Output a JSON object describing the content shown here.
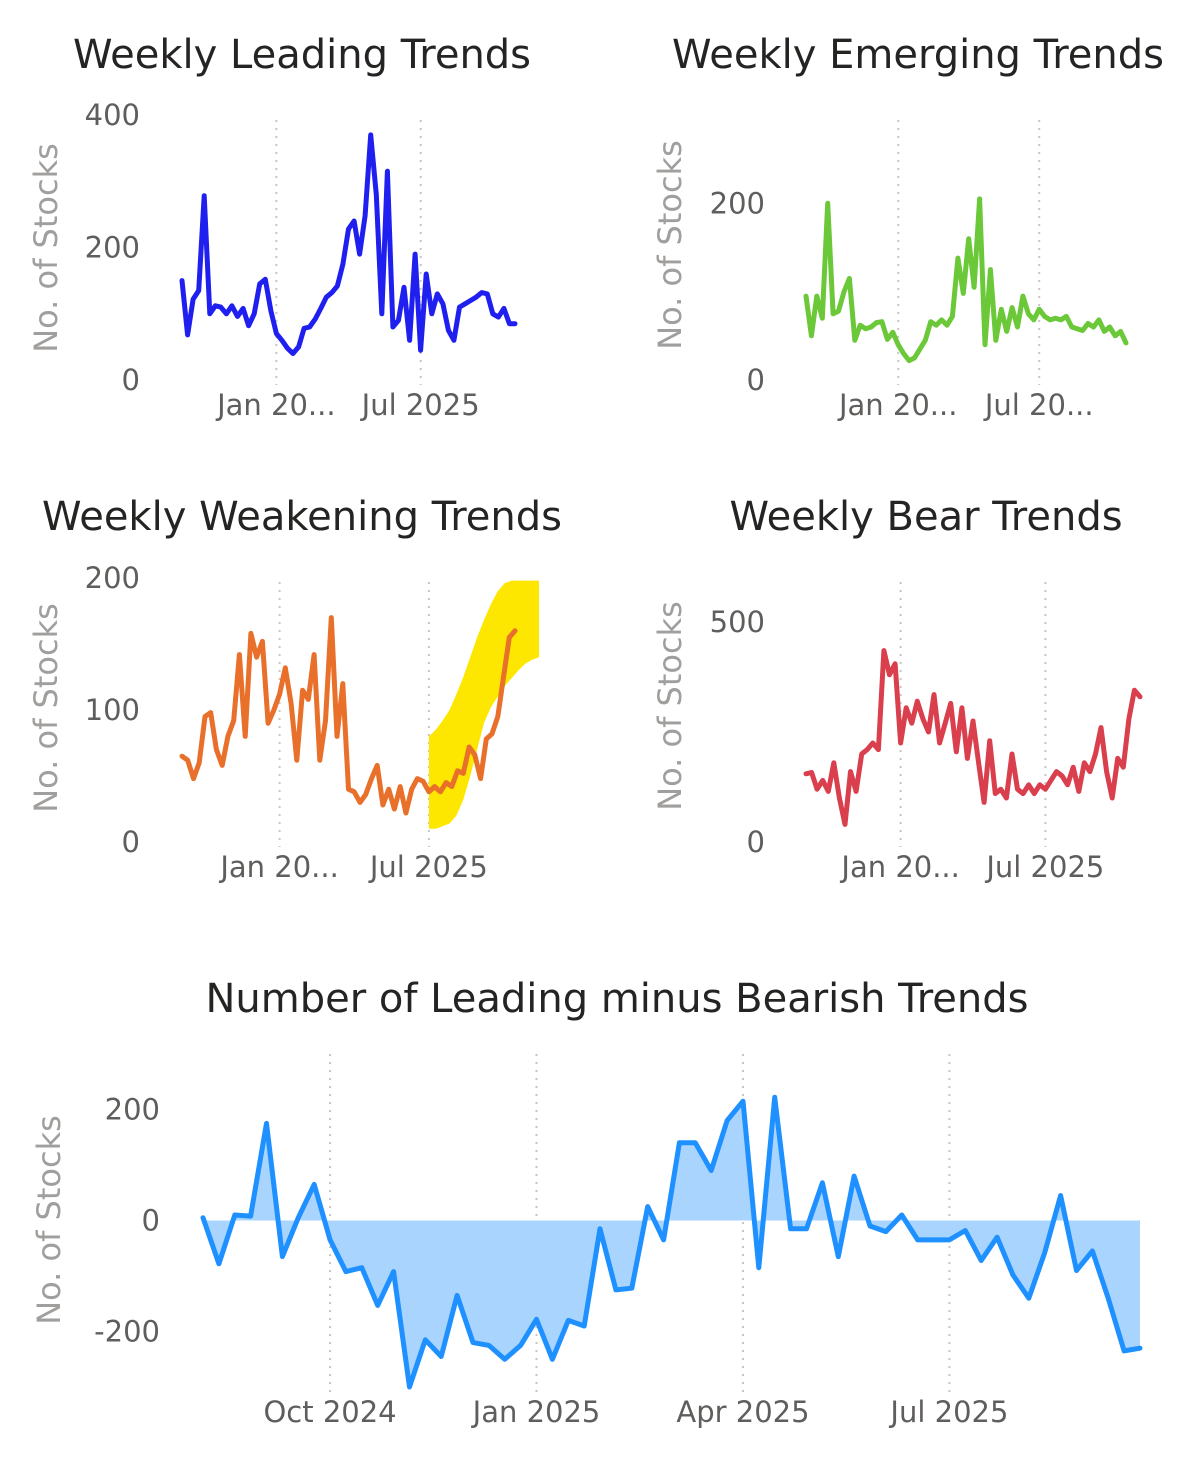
{
  "chart_data": [
    {
      "id": "leading",
      "type": "line",
      "title": "Weekly Leading Trends",
      "ylabel": "No. of Stocks",
      "xlabel": "",
      "color": "#1f1ff0",
      "ylim": [
        0,
        400
      ],
      "y_ticks": [
        {
          "v": 0,
          "label": "0"
        },
        {
          "v": 200,
          "label": "200"
        },
        {
          "v": 400,
          "label": "400"
        }
      ],
      "x_ticks": [
        {
          "i": 17,
          "label": "Jan 20..."
        },
        {
          "i": 43,
          "label": "Jul 2025"
        }
      ],
      "values": [
        150,
        68,
        122,
        135,
        278,
        100,
        112,
        110,
        100,
        112,
        96,
        108,
        82,
        100,
        145,
        152,
        105,
        70,
        60,
        48,
        40,
        50,
        78,
        80,
        92,
        108,
        125,
        132,
        142,
        175,
        228,
        240,
        190,
        248,
        370,
        280,
        100,
        315,
        80,
        90,
        140,
        60,
        190,
        45,
        160,
        100,
        130,
        115,
        75,
        60,
        110,
        115,
        120,
        125,
        132,
        130,
        100,
        95,
        108,
        85,
        85
      ]
    },
    {
      "id": "emerging",
      "type": "line",
      "title": "Weekly Emerging Trends",
      "ylabel": "No. of Stocks",
      "xlabel": "",
      "color": "#6bc839",
      "ylim": [
        0,
        300
      ],
      "y_ticks": [
        {
          "v": 0,
          "label": "0"
        },
        {
          "v": 200,
          "label": "200"
        }
      ],
      "x_ticks": [
        {
          "i": 17,
          "label": "Jan 20..."
        },
        {
          "i": 43,
          "label": "Jul 20..."
        }
      ],
      "values": [
        95,
        50,
        95,
        70,
        200,
        75,
        78,
        100,
        115,
        45,
        62,
        58,
        60,
        65,
        66,
        46,
        54,
        40,
        30,
        22,
        25,
        35,
        45,
        66,
        62,
        68,
        62,
        72,
        138,
        98,
        160,
        105,
        205,
        40,
        125,
        45,
        80,
        55,
        82,
        60,
        95,
        75,
        68,
        80,
        72,
        68,
        70,
        68,
        72,
        60,
        58,
        56,
        64,
        60,
        68,
        55,
        60,
        50,
        55,
        42
      ]
    },
    {
      "id": "weakening",
      "type": "line",
      "title": "Weekly Weakening Trends",
      "ylabel": "No. of Stocks",
      "xlabel": "",
      "color": "#e8702a",
      "ylim": [
        0,
        200
      ],
      "y_ticks": [
        {
          "v": 0,
          "label": "0"
        },
        {
          "v": 100,
          "label": "100"
        },
        {
          "v": 200,
          "label": "200"
        }
      ],
      "x_ticks": [
        {
          "i": 17,
          "label": "Jan 20..."
        },
        {
          "i": 43,
          "label": "Jul 2025"
        }
      ],
      "values": [
        65,
        62,
        48,
        60,
        95,
        98,
        70,
        58,
        80,
        92,
        142,
        80,
        158,
        140,
        152,
        90,
        100,
        112,
        132,
        105,
        62,
        115,
        108,
        142,
        62,
        92,
        170,
        80,
        120,
        40,
        38,
        30,
        36,
        48,
        58,
        28,
        40,
        25,
        42,
        22,
        40,
        48,
        46,
        38,
        42,
        38,
        45,
        42,
        54,
        52,
        72,
        66,
        48,
        78,
        82,
        95,
        125,
        155,
        160
      ],
      "highlight": {
        "x_from_i": 43,
        "lower": [
          10,
          10,
          12,
          14,
          20,
          32,
          50,
          70,
          90,
          102,
          110,
          118,
          124,
          130,
          135,
          138,
          140
        ],
        "upper": [
          80,
          85,
          92,
          100,
          112,
          125,
          140,
          155,
          168,
          180,
          190,
          196,
          198,
          198,
          198,
          198,
          198
        ]
      }
    },
    {
      "id": "bear",
      "type": "line",
      "title": "Weekly Bear Trends",
      "ylabel": "No. of Stocks",
      "xlabel": "",
      "color": "#d93f4c",
      "ylim": [
        0,
        600
      ],
      "y_ticks": [
        {
          "v": 0,
          "label": "0"
        },
        {
          "v": 500,
          "label": "500"
        }
      ],
      "x_ticks": [
        {
          "i": 17,
          "label": "Jan 20..."
        },
        {
          "i": 43,
          "label": "Jul 2025"
        }
      ],
      "values": [
        155,
        158,
        120,
        140,
        115,
        180,
        100,
        40,
        160,
        115,
        200,
        210,
        225,
        210,
        435,
        380,
        405,
        225,
        305,
        270,
        320,
        280,
        250,
        335,
        225,
        270,
        315,
        205,
        305,
        190,
        275,
        180,
        90,
        230,
        110,
        120,
        100,
        200,
        120,
        110,
        130,
        110,
        130,
        120,
        140,
        160,
        150,
        130,
        170,
        115,
        180,
        160,
        200,
        260,
        160,
        100,
        190,
        170,
        280,
        345,
        330
      ]
    },
    {
      "id": "net",
      "type": "area",
      "title": "Number of Leading minus Bearish Trends",
      "ylabel": "No. of Stocks",
      "xlabel": "",
      "color": "#1e90ff",
      "fill_color": "#a9d4fe",
      "ylim": [
        -300,
        300
      ],
      "y_ticks": [
        {
          "v": -200,
          "label": "-200"
        },
        {
          "v": 0,
          "label": "0"
        },
        {
          "v": 200,
          "label": "200"
        }
      ],
      "x_ticks": [
        {
          "i": 8,
          "label": "Oct 2024"
        },
        {
          "i": 21,
          "label": "Jan 2025"
        },
        {
          "i": 34,
          "label": "Apr 2025"
        },
        {
          "i": 47,
          "label": "Jul 2025"
        }
      ],
      "values": [
        5,
        -78,
        10,
        8,
        175,
        -65,
        5,
        65,
        -35,
        -92,
        -85,
        -153,
        -92,
        -300,
        -215,
        -245,
        -135,
        -220,
        -225,
        -250,
        -225,
        -178,
        -250,
        -180,
        -190,
        -15,
        -125,
        -122,
        25,
        -35,
        140,
        140,
        90,
        180,
        215,
        -85,
        222,
        -15,
        -15,
        68,
        -65,
        80,
        -10,
        -20,
        10,
        -35,
        -35,
        -35,
        -18,
        -72,
        -30,
        -98,
        -140,
        -58,
        45,
        -90,
        -55,
        -140,
        -235,
        -230
      ]
    }
  ]
}
